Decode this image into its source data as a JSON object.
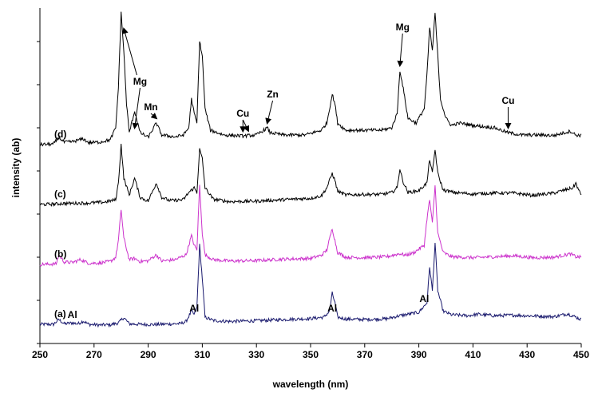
{
  "chart_data": {
    "type": "line",
    "xlabel": "wavelength (nm)",
    "ylabel": "intensity (ab)",
    "xlim": [
      250,
      450
    ],
    "xticks": [
      250,
      270,
      290,
      310,
      330,
      350,
      370,
      390,
      410,
      430,
      450
    ],
    "y_tick_labels_shown": false,
    "grid": false,
    "colors": {
      "a": "#1a1a6e",
      "b": "#cc33cc",
      "c": "#000000",
      "d": "#000000"
    },
    "series": [
      {
        "label": "(a)",
        "offset": 0,
        "baseline": 1.0,
        "points": [
          [
            250,
            1.0
          ],
          [
            255,
            1.0
          ],
          [
            257,
            3.0
          ],
          [
            259,
            1.2
          ],
          [
            262,
            1.6
          ],
          [
            264,
            1.2
          ],
          [
            266,
            2.4
          ],
          [
            268,
            1.0
          ],
          [
            272,
            0.7
          ],
          [
            276,
            0.8
          ],
          [
            279,
            1.6
          ],
          [
            281,
            3.8
          ],
          [
            283,
            1.2
          ],
          [
            287,
            1.0
          ],
          [
            292,
            0.9
          ],
          [
            297,
            1.1
          ],
          [
            302,
            1.3
          ],
          [
            304,
            2.2
          ],
          [
            306,
            6.5
          ],
          [
            307,
            5.0
          ],
          [
            308,
            8.0
          ],
          [
            309,
            34.0
          ],
          [
            310,
            20.0
          ],
          [
            311,
            4.0
          ],
          [
            314,
            2.6
          ],
          [
            320,
            2.2
          ],
          [
            330,
            2.5
          ],
          [
            340,
            3.0
          ],
          [
            350,
            3.4
          ],
          [
            355,
            4.0
          ],
          [
            357,
            6.5
          ],
          [
            358,
            14.0
          ],
          [
            359,
            10.0
          ],
          [
            360,
            4.0
          ],
          [
            363,
            3.2
          ],
          [
            370,
            3.0
          ],
          [
            378,
            3.3
          ],
          [
            383,
            4.6
          ],
          [
            385,
            5.0
          ],
          [
            390,
            6.0
          ],
          [
            393,
            10.0
          ],
          [
            394,
            25.0
          ],
          [
            395,
            15.0
          ],
          [
            396,
            35.0
          ],
          [
            397,
            15.0
          ],
          [
            399,
            6.5
          ],
          [
            402,
            5.0
          ],
          [
            408,
            4.6
          ],
          [
            412,
            5.2
          ],
          [
            418,
            4.6
          ],
          [
            425,
            4.8
          ],
          [
            432,
            4.5
          ],
          [
            440,
            4.2
          ],
          [
            445,
            5.4
          ],
          [
            448,
            4.0
          ],
          [
            450,
            3.0
          ]
        ]
      },
      {
        "label": "(b)",
        "offset": 25,
        "baseline": 1.0,
        "points": [
          [
            250,
            1.0
          ],
          [
            256,
            1.2
          ],
          [
            257,
            5.0
          ],
          [
            259,
            2.0
          ],
          [
            262,
            1.8
          ],
          [
            265,
            3.0
          ],
          [
            268,
            1.5
          ],
          [
            272,
            1.6
          ],
          [
            276,
            2.2
          ],
          [
            278,
            4.0
          ],
          [
            279,
            11.0
          ],
          [
            280,
            24.0
          ],
          [
            281,
            12.0
          ],
          [
            283,
            3.0
          ],
          [
            285,
            3.5
          ],
          [
            287,
            2.2
          ],
          [
            290,
            2.5
          ],
          [
            293,
            5.0
          ],
          [
            295,
            2.4
          ],
          [
            300,
            3.0
          ],
          [
            304,
            5.0
          ],
          [
            306,
            13.0
          ],
          [
            307,
            9.0
          ],
          [
            308,
            7.0
          ],
          [
            309,
            34.0
          ],
          [
            310,
            14.0
          ],
          [
            311,
            5.0
          ],
          [
            314,
            3.0
          ],
          [
            320,
            2.4
          ],
          [
            330,
            2.6
          ],
          [
            340,
            3.2
          ],
          [
            350,
            3.5
          ],
          [
            354,
            4.8
          ],
          [
            356,
            7.0
          ],
          [
            358,
            16.0
          ],
          [
            359,
            11.0
          ],
          [
            360,
            6.0
          ],
          [
            363,
            4.0
          ],
          [
            370,
            3.8
          ],
          [
            378,
            4.2
          ],
          [
            383,
            5.5
          ],
          [
            385,
            4.8
          ],
          [
            388,
            5.8
          ],
          [
            392,
            9.0
          ],
          [
            393,
            20.0
          ],
          [
            394,
            28.0
          ],
          [
            395,
            18.0
          ],
          [
            396,
            34.0
          ],
          [
            397,
            14.0
          ],
          [
            399,
            6.0
          ],
          [
            402,
            4.2
          ],
          [
            410,
            3.8
          ],
          [
            418,
            4.2
          ],
          [
            425,
            4.6
          ],
          [
            432,
            3.8
          ],
          [
            440,
            4.0
          ],
          [
            446,
            5.4
          ],
          [
            448,
            4.2
          ],
          [
            450,
            4.0
          ]
        ]
      },
      {
        "label": "(c)",
        "offset": 50,
        "baseline": 1.0,
        "points": [
          [
            250,
            1.0
          ],
          [
            256,
            1.2
          ],
          [
            258,
            1.4
          ],
          [
            262,
            1.5
          ],
          [
            268,
            1.6
          ],
          [
            274,
            2.0
          ],
          [
            278,
            3.0
          ],
          [
            279,
            10.0
          ],
          [
            280,
            26.0
          ],
          [
            281,
            12.0
          ],
          [
            283,
            5.0
          ],
          [
            285,
            12.0
          ],
          [
            287,
            4.0
          ],
          [
            290,
            2.4
          ],
          [
            293,
            10.0
          ],
          [
            295,
            4.0
          ],
          [
            298,
            2.6
          ],
          [
            303,
            3.0
          ],
          [
            305,
            6.0
          ],
          [
            307,
            8.0
          ],
          [
            308,
            6.0
          ],
          [
            309,
            24.0
          ],
          [
            310,
            20.0
          ],
          [
            311,
            8.0
          ],
          [
            314,
            3.2
          ],
          [
            320,
            2.2
          ],
          [
            330,
            2.4
          ],
          [
            340,
            3.0
          ],
          [
            350,
            3.6
          ],
          [
            354,
            4.6
          ],
          [
            356,
            8.0
          ],
          [
            358,
            14.0
          ],
          [
            359,
            11.0
          ],
          [
            360,
            6.5
          ],
          [
            363,
            5.0
          ],
          [
            370,
            5.2
          ],
          [
            376,
            5.2
          ],
          [
            380,
            6.0
          ],
          [
            382,
            8.0
          ],
          [
            383,
            16.0
          ],
          [
            384,
            11.0
          ],
          [
            386,
            6.0
          ],
          [
            390,
            6.8
          ],
          [
            393,
            10.0
          ],
          [
            394,
            20.0
          ],
          [
            395,
            14.0
          ],
          [
            396,
            24.0
          ],
          [
            397,
            14.0
          ],
          [
            399,
            7.0
          ],
          [
            403,
            6.0
          ],
          [
            410,
            5.4
          ],
          [
            418,
            5.8
          ],
          [
            425,
            5.8
          ],
          [
            432,
            4.8
          ],
          [
            440,
            5.8
          ],
          [
            447,
            8.0
          ],
          [
            448,
            10.0
          ],
          [
            449,
            7.0
          ],
          [
            450,
            5.0
          ]
        ]
      },
      {
        "label": "(d)",
        "offset": 75,
        "baseline": 1.0,
        "points": [
          [
            250,
            1.0
          ],
          [
            255,
            1.2
          ],
          [
            257,
            4.0
          ],
          [
            259,
            2.0
          ],
          [
            262,
            2.2
          ],
          [
            266,
            3.4
          ],
          [
            268,
            1.8
          ],
          [
            272,
            2.0
          ],
          [
            276,
            3.0
          ],
          [
            278,
            8.0
          ],
          [
            279,
            25.0
          ],
          [
            280,
            56.0
          ],
          [
            281,
            40.0
          ],
          [
            282,
            18.0
          ],
          [
            283,
            6.0
          ],
          [
            285,
            15.0
          ],
          [
            287,
            6.0
          ],
          [
            290,
            4.0
          ],
          [
            293,
            10.0
          ],
          [
            295,
            5.0
          ],
          [
            300,
            4.2
          ],
          [
            303,
            5.0
          ],
          [
            305,
            8.0
          ],
          [
            306,
            20.0
          ],
          [
            307,
            14.0
          ],
          [
            308,
            10.0
          ],
          [
            309,
            44.0
          ],
          [
            310,
            38.0
          ],
          [
            311,
            16.0
          ],
          [
            313,
            7.0
          ],
          [
            318,
            5.0
          ],
          [
            325,
            4.6
          ],
          [
            330,
            5.0
          ],
          [
            334,
            8.0
          ],
          [
            335,
            6.0
          ],
          [
            340,
            5.0
          ],
          [
            348,
            5.0
          ],
          [
            354,
            7.0
          ],
          [
            356,
            10.0
          ],
          [
            358,
            22.0
          ],
          [
            359,
            18.0
          ],
          [
            360,
            10.0
          ],
          [
            363,
            7.0
          ],
          [
            370,
            7.0
          ],
          [
            376,
            7.0
          ],
          [
            380,
            8.0
          ],
          [
            382,
            14.0
          ],
          [
            383,
            32.0
          ],
          [
            384,
            26.0
          ],
          [
            386,
            12.0
          ],
          [
            389,
            10.0
          ],
          [
            392,
            16.0
          ],
          [
            393,
            30.0
          ],
          [
            394,
            50.0
          ],
          [
            395,
            40.0
          ],
          [
            396,
            56.0
          ],
          [
            397,
            38.0
          ],
          [
            398,
            20.0
          ],
          [
            400,
            12.0
          ],
          [
            402,
            9.0
          ],
          [
            405,
            10.0
          ],
          [
            410,
            9.0
          ],
          [
            418,
            8.0
          ],
          [
            423,
            6.0
          ],
          [
            428,
            5.0
          ],
          [
            435,
            5.0
          ],
          [
            440,
            4.8
          ],
          [
            446,
            6.6
          ],
          [
            448,
            5.0
          ],
          [
            450,
            4.8
          ]
        ]
      }
    ],
    "annotations": [
      {
        "text": "Al",
        "x": 262,
        "series": "(a)",
        "arrow": false
      },
      {
        "text": "Al",
        "x": 307,
        "series": "(a)",
        "arrow": false
      },
      {
        "text": "Al",
        "x": 358,
        "series": "(a)",
        "arrow": false
      },
      {
        "text": "Al",
        "x": 392,
        "series": "(a)",
        "arrow": false
      },
      {
        "text": "Mg",
        "x": 283,
        "arrow_to_x": [
          280,
          285
        ],
        "arrow": true
      },
      {
        "text": "Mn",
        "x": 291,
        "arrow_to_x": [
          293
        ],
        "arrow": true
      },
      {
        "text": "Cu",
        "x": 325,
        "arrow_to_x": [
          325,
          327
        ],
        "arrow": true
      },
      {
        "text": "Zn",
        "x": 333,
        "arrow_to_x": [
          334
        ],
        "arrow": true
      },
      {
        "text": "Mg",
        "x": 383,
        "arrow_to_x": [
          383
        ],
        "arrow": true
      },
      {
        "text": "Cu",
        "x": 423,
        "arrow_to_x": [
          423
        ],
        "arrow": true
      }
    ]
  }
}
